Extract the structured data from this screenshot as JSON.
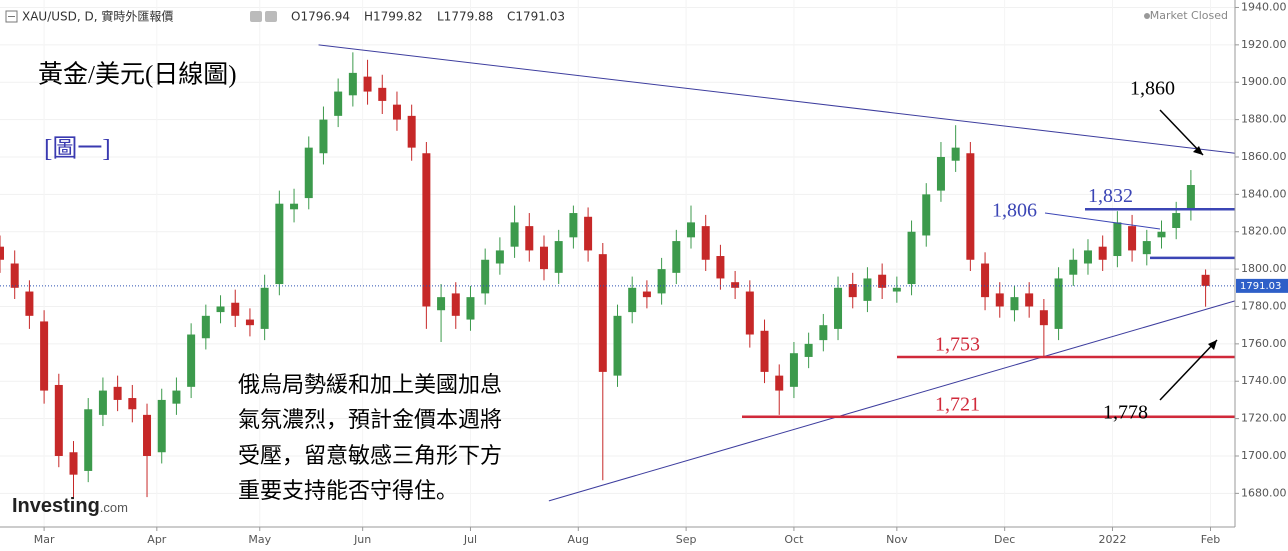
{
  "header": {
    "symbol": "XAU/USD, D, 實時外匯報價",
    "ohlc": [
      "O1796.94",
      "H1799.82",
      "L1779.88",
      "C1791.03"
    ],
    "status": "Market Closed"
  },
  "logo": {
    "brand": "Investing",
    "suffix": ".com"
  },
  "chart_data": {
    "type": "candlestick",
    "title": "黃金/美元(日線圖)",
    "subtitle": "[圖一]",
    "x": [
      -9,
      -6,
      -3,
      0,
      3,
      6,
      9,
      12,
      15,
      18,
      21,
      24,
      27,
      30,
      33,
      36,
      39,
      42,
      45,
      48,
      51,
      54,
      57,
      60,
      63,
      66,
      69,
      72,
      75,
      78,
      81,
      84,
      87,
      90,
      93,
      96,
      99,
      102,
      105,
      108,
      111,
      114,
      117,
      120,
      123,
      126,
      129,
      132,
      135,
      138,
      141,
      144,
      147,
      150,
      153,
      156,
      159,
      162,
      165,
      168,
      171,
      174,
      177,
      180,
      183,
      186,
      189,
      192,
      195,
      198,
      201,
      204,
      207,
      210,
      213,
      216,
      219,
      222,
      225,
      228,
      231,
      234,
      237
    ],
    "open": [
      1812,
      1803,
      1788,
      1772,
      1738,
      1702,
      1692,
      1722,
      1737,
      1731,
      1722,
      1702,
      1728,
      1737,
      1763,
      1777,
      1782,
      1773,
      1768,
      1792,
      1832,
      1838,
      1862,
      1882,
      1893,
      1903,
      1897,
      1888,
      1882,
      1862,
      1778,
      1787,
      1773,
      1787,
      1803,
      1812,
      1823,
      1812,
      1798,
      1817,
      1828,
      1808,
      1743,
      1777,
      1788,
      1787,
      1798,
      1817,
      1823,
      1807,
      1793,
      1788,
      1767,
      1743,
      1737,
      1753,
      1762,
      1768,
      1792,
      1783,
      1797,
      1788,
      1792,
      1818,
      1842,
      1858,
      1862,
      1803,
      1787,
      1778,
      1787,
      1778,
      1768,
      1797,
      1803,
      1812,
      1807,
      1823,
      1808,
      1817,
      1822,
      1832,
      1796.94
    ],
    "high": [
      1818,
      1810,
      1794,
      1778,
      1744,
      1708,
      1731,
      1742,
      1743,
      1738,
      1728,
      1736,
      1742,
      1771,
      1781,
      1786,
      1789,
      1779,
      1797,
      1842,
      1843,
      1871,
      1887,
      1902,
      1916,
      1912,
      1904,
      1895,
      1888,
      1868,
      1792,
      1793,
      1791,
      1811,
      1817,
      1834,
      1830,
      1818,
      1821,
      1834,
      1833,
      1814,
      1781,
      1796,
      1794,
      1806,
      1821,
      1834,
      1829,
      1813,
      1799,
      1794,
      1773,
      1749,
      1761,
      1766,
      1776,
      1796,
      1798,
      1801,
      1803,
      1796,
      1826,
      1846,
      1868,
      1877,
      1868,
      1809,
      1793,
      1791,
      1793,
      1784,
      1801,
      1811,
      1816,
      1818,
      1831,
      1829,
      1821,
      1826,
      1836,
      1853,
      1799.82
    ],
    "low": [
      1798,
      1784,
      1768,
      1728,
      1694,
      1677,
      1686,
      1716,
      1724,
      1718,
      1678,
      1696,
      1722,
      1731,
      1757,
      1771,
      1769,
      1764,
      1762,
      1786,
      1825,
      1832,
      1856,
      1876,
      1887,
      1888,
      1883,
      1874,
      1858,
      1768,
      1761,
      1768,
      1767,
      1781,
      1797,
      1806,
      1804,
      1794,
      1792,
      1811,
      1804,
      1687,
      1737,
      1771,
      1779,
      1781,
      1792,
      1811,
      1799,
      1789,
      1784,
      1758,
      1739,
      1722,
      1731,
      1747,
      1756,
      1762,
      1779,
      1777,
      1784,
      1782,
      1786,
      1812,
      1836,
      1852,
      1799,
      1778,
      1774,
      1772,
      1774,
      1753,
      1762,
      1791,
      1797,
      1799,
      1801,
      1804,
      1802,
      1811,
      1816,
      1826,
      1779.88
    ],
    "close": [
      1805,
      1790,
      1775,
      1735,
      1700,
      1690,
      1725,
      1735,
      1730,
      1725,
      1700,
      1730,
      1735,
      1765,
      1775,
      1780,
      1775,
      1770,
      1790,
      1835,
      1835,
      1865,
      1880,
      1895,
      1905,
      1895,
      1890,
      1880,
      1865,
      1780,
      1785,
      1775,
      1785,
      1805,
      1810,
      1825,
      1810,
      1800,
      1815,
      1830,
      1810,
      1745,
      1775,
      1790,
      1785,
      1800,
      1815,
      1825,
      1805,
      1795,
      1790,
      1765,
      1745,
      1735,
      1755,
      1760,
      1770,
      1790,
      1785,
      1795,
      1790,
      1790,
      1820,
      1840,
      1860,
      1865,
      1805,
      1785,
      1780,
      1785,
      1780,
      1770,
      1795,
      1805,
      1810,
      1805,
      1825,
      1810,
      1815,
      1820,
      1830,
      1845,
      1791.03
    ],
    "last_price_label": "1791.03",
    "up_color": "#3c9a4c",
    "down_color": "#c62828",
    "xlim": [
      -9,
      243
    ],
    "xticks": [
      {
        "value": 0,
        "label": "Mar"
      },
      {
        "value": 23,
        "label": "Apr"
      },
      {
        "value": 44,
        "label": "May"
      },
      {
        "value": 65,
        "label": "Jun"
      },
      {
        "value": 87,
        "label": "Jul"
      },
      {
        "value": 109,
        "label": "Aug"
      },
      {
        "value": 131,
        "label": "Sep"
      },
      {
        "value": 153,
        "label": "Oct"
      },
      {
        "value": 174,
        "label": "Nov"
      },
      {
        "value": 196,
        "label": "Dec"
      },
      {
        "value": 218,
        "label": "2022"
      },
      {
        "value": 238,
        "label": "Feb"
      }
    ],
    "ylim": [
      1662,
      1944
    ],
    "yticks": [
      {
        "value": 1680,
        "label": "1680.00"
      },
      {
        "value": 1700,
        "label": "1700.00"
      },
      {
        "value": 1720,
        "label": "1720.00"
      },
      {
        "value": 1740,
        "label": "1740.00"
      },
      {
        "value": 1760,
        "label": "1760.00"
      },
      {
        "value": 1780,
        "label": "1780.00"
      },
      {
        "value": 1800,
        "label": "1800.00"
      },
      {
        "value": 1820,
        "label": "1820.00"
      },
      {
        "value": 1840,
        "label": "1840.00"
      },
      {
        "value": 1860,
        "label": "1860.00"
      },
      {
        "value": 1880,
        "label": "1880.00"
      },
      {
        "value": 1900,
        "label": "1900.00"
      },
      {
        "value": 1920,
        "label": "1920.00"
      },
      {
        "value": 1940,
        "label": "1940.00"
      }
    ],
    "grid": true,
    "trendlines": [
      {
        "x": [
          56,
          243
        ],
        "y": [
          1920,
          1862
        ],
        "color": "#3d3d9e"
      },
      {
        "x": [
          103,
          243
        ],
        "y": [
          1676,
          1783
        ],
        "color": "#3d3d9e"
      }
    ],
    "levels": [
      {
        "value": 1832,
        "label": "1,832",
        "color": "#3b45b5"
      },
      {
        "value": 1806,
        "label": "1,806",
        "color": "#3b45b5"
      },
      {
        "value": 1753,
        "label": "1,753",
        "color": "#d0293a"
      },
      {
        "value": 1721,
        "label": "1,721",
        "color": "#d0293a"
      }
    ],
    "annotations": [
      "1,860",
      "1,778"
    ],
    "note": [
      "俄烏局勢緩和加上美國加息",
      "氣氛濃烈，預計金價本週將",
      "受壓，留意敏感三角形下方",
      "重要支持能否守得住。"
    ]
  }
}
